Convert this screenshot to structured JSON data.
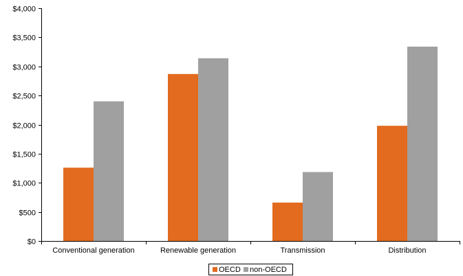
{
  "chart_data": {
    "type": "bar",
    "title": "",
    "xlabel": "",
    "ylabel": "",
    "categories": [
      "Conventional generation",
      "Renewable generation",
      "Transmission",
      "Distribution"
    ],
    "series": [
      {
        "name": "OECD",
        "values": [
          1260,
          2870,
          660,
          1980
        ],
        "color": "#e26b1f"
      },
      {
        "name": "non-OECD",
        "values": [
          2400,
          3140,
          1185,
          3340
        ],
        "color": "#a0a0a0"
      }
    ],
    "ylim": [
      0,
      4000
    ],
    "yticks": [
      "$0",
      "$500",
      "$1,000",
      "$1,500",
      "$2,000",
      "$2,500",
      "$3,000",
      "$3,500",
      "$4,000"
    ],
    "ytick_values": [
      0,
      500,
      1000,
      1500,
      2000,
      2500,
      3000,
      3500,
      4000
    ],
    "grid": false,
    "legend_position": "bottom"
  }
}
